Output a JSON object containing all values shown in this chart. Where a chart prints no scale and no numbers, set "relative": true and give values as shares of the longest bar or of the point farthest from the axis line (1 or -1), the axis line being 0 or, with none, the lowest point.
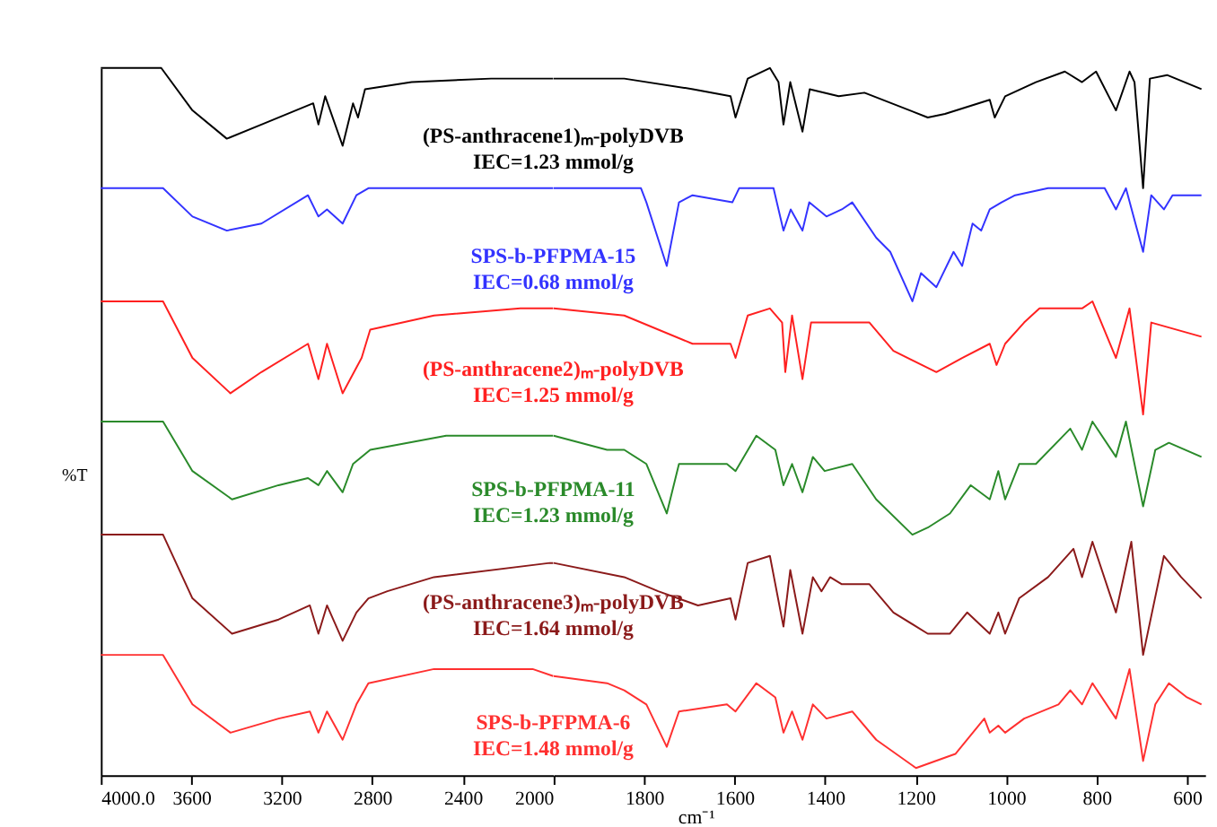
{
  "chart_data": [
    {
      "type": "line",
      "relative": true,
      "ylabel": "%T",
      "legend": false,
      "grid": false,
      "marker": "none",
      "line_style": "solid",
      "xlim": [
        4000,
        2000
      ],
      "xticks": [
        {
          "value": 4000,
          "label": "4000.0"
        },
        3600,
        3200,
        2800,
        2400,
        2000
      ],
      "annotations": [
        "IEC=1.23 mmol/g",
        "IEC=0.68 mmol/g",
        "IEC=1.25 mmol/g",
        "IEC=1.23 mmol/g",
        "IEC=1.64 mmol/g",
        "IEC=1.48 mmol/g"
      ],
      "series": [
        {
          "name": "(PS-anthracene1)ₘ-polyDVB",
          "color": "#000000",
          "x": [
            4000,
            3733,
            3595,
            3443,
            3290,
            3061,
            3038,
            3008,
            2931,
            2885,
            2863,
            2832,
            2626,
            2275,
            2000
          ],
          "values": [
            1.0,
            1.0,
            0.94,
            0.9,
            0.92,
            0.95,
            0.92,
            0.96,
            0.89,
            0.95,
            0.93,
            0.97,
            0.98,
            0.985,
            0.985
          ]
        },
        {
          "name": "SPS-b-PFPMA-15",
          "color": "#3333ff",
          "x": [
            4000,
            3725,
            3595,
            3443,
            3290,
            3084,
            3038,
            3000,
            2931,
            2870,
            2817,
            2400,
            2000
          ],
          "values": [
            0.83,
            0.83,
            0.79,
            0.77,
            0.78,
            0.82,
            0.79,
            0.8,
            0.78,
            0.82,
            0.83,
            0.83,
            0.83
          ]
        },
        {
          "name": "(PS-anthracene2)ₘ-polyDVB",
          "color": "#ff2020",
          "x": [
            4000,
            3725,
            3595,
            3427,
            3290,
            3084,
            3038,
            3000,
            2931,
            2847,
            2809,
            2527,
            2145,
            2000
          ],
          "values": [
            0.67,
            0.67,
            0.59,
            0.54,
            0.57,
            0.61,
            0.56,
            0.61,
            0.54,
            0.59,
            0.63,
            0.65,
            0.66,
            0.66
          ]
        },
        {
          "name": "SPS-b-PFPMA-11",
          "color": "#2a8a2a",
          "x": [
            4000,
            3725,
            3595,
            3420,
            3214,
            3084,
            3038,
            3000,
            2931,
            2885,
            2809,
            2473,
            2122,
            2000
          ],
          "values": [
            0.5,
            0.5,
            0.43,
            0.39,
            0.41,
            0.42,
            0.41,
            0.43,
            0.4,
            0.44,
            0.46,
            0.48,
            0.48,
            0.48
          ]
        },
        {
          "name": "(PS-anthracene3)ₘ-polyDVB",
          "color": "#8b1a1a",
          "x": [
            4000,
            3725,
            3595,
            3420,
            3214,
            3076,
            3038,
            3000,
            2931,
            2870,
            2817,
            2733,
            2527,
            2015,
            2000
          ],
          "values": [
            0.34,
            0.34,
            0.25,
            0.2,
            0.22,
            0.24,
            0.2,
            0.24,
            0.19,
            0.23,
            0.25,
            0.26,
            0.28,
            0.3,
            0.3
          ]
        },
        {
          "name": "SPS-b-PFPMA-6",
          "color": "#ff3030",
          "x": [
            4000,
            3725,
            3595,
            3427,
            3214,
            3076,
            3038,
            3000,
            2931,
            2870,
            2817,
            2527,
            2091,
            2000
          ],
          "values": [
            0.17,
            0.17,
            0.1,
            0.06,
            0.08,
            0.09,
            0.06,
            0.09,
            0.05,
            0.1,
            0.13,
            0.15,
            0.15,
            0.14
          ]
        }
      ]
    },
    {
      "type": "line",
      "relative": true,
      "xlabel": "cm⁻¹",
      "legend": false,
      "grid": false,
      "marker": "none",
      "line_style": "solid",
      "xlim": [
        2000,
        560
      ],
      "xticks": [
        1800,
        1600,
        1400,
        1200,
        1000,
        800,
        600
      ],
      "series": [
        {
          "color": "#000000",
          "x": [
            2000,
            1844,
            1692,
            1609,
            1598,
            1571,
            1522,
            1503,
            1492,
            1477,
            1450,
            1434,
            1370,
            1313,
            1173,
            1135,
            1036,
            1025,
            1002,
            934,
            870,
            832,
            801,
            757,
            727,
            716,
            697,
            682,
            644,
            568
          ],
          "values": [
            0.985,
            0.985,
            0.97,
            0.96,
            0.93,
            0.985,
            1.0,
            0.98,
            0.92,
            0.98,
            0.91,
            0.97,
            0.96,
            0.965,
            0.93,
            0.935,
            0.955,
            0.93,
            0.96,
            0.98,
            0.995,
            0.98,
            0.995,
            0.94,
            0.995,
            0.98,
            0.83,
            0.985,
            0.99,
            0.97
          ]
        },
        {
          "color": "#3333ff",
          "x": [
            2000,
            1844,
            1807,
            1795,
            1750,
            1723,
            1693,
            1605,
            1590,
            1514,
            1492,
            1476,
            1450,
            1435,
            1397,
            1363,
            1340,
            1287,
            1256,
            1207,
            1188,
            1154,
            1116,
            1097,
            1074,
            1055,
            1036,
            1010,
            980,
            907,
            832,
            782,
            757,
            735,
            697,
            679,
            651,
            632,
            568
          ],
          "values": [
            0.83,
            0.83,
            0.83,
            0.81,
            0.72,
            0.81,
            0.82,
            0.81,
            0.83,
            0.83,
            0.77,
            0.8,
            0.77,
            0.81,
            0.79,
            0.8,
            0.81,
            0.76,
            0.74,
            0.67,
            0.71,
            0.69,
            0.74,
            0.72,
            0.78,
            0.77,
            0.8,
            0.81,
            0.82,
            0.83,
            0.83,
            0.83,
            0.8,
            0.83,
            0.74,
            0.82,
            0.8,
            0.82,
            0.82
          ]
        },
        {
          "color": "#ff2020",
          "x": [
            2000,
            1844,
            1693,
            1609,
            1598,
            1571,
            1522,
            1495,
            1488,
            1473,
            1450,
            1431,
            1370,
            1302,
            1249,
            1154,
            1097,
            1036,
            1021,
            1002,
            960,
            926,
            870,
            832,
            809,
            757,
            727,
            697,
            679,
            568
          ],
          "values": [
            0.66,
            0.65,
            0.61,
            0.61,
            0.59,
            0.65,
            0.66,
            0.64,
            0.57,
            0.65,
            0.56,
            0.64,
            0.64,
            0.64,
            0.6,
            0.57,
            0.59,
            0.61,
            0.58,
            0.61,
            0.64,
            0.66,
            0.66,
            0.66,
            0.67,
            0.59,
            0.66,
            0.51,
            0.64,
            0.62
          ]
        },
        {
          "color": "#2a8a2a",
          "x": [
            2000,
            1882,
            1844,
            1795,
            1750,
            1723,
            1617,
            1598,
            1552,
            1510,
            1492,
            1473,
            1450,
            1427,
            1401,
            1340,
            1287,
            1207,
            1173,
            1124,
            1078,
            1036,
            1017,
            1002,
            971,
            934,
            858,
            832,
            809,
            757,
            735,
            697,
            670,
            640,
            568
          ],
          "values": [
            0.48,
            0.46,
            0.46,
            0.44,
            0.37,
            0.44,
            0.44,
            0.43,
            0.48,
            0.46,
            0.41,
            0.44,
            0.4,
            0.45,
            0.43,
            0.44,
            0.39,
            0.34,
            0.35,
            0.37,
            0.41,
            0.39,
            0.43,
            0.39,
            0.44,
            0.44,
            0.49,
            0.46,
            0.5,
            0.45,
            0.5,
            0.38,
            0.46,
            0.47,
            0.45
          ]
        },
        {
          "color": "#8b1a1a",
          "x": [
            2000,
            1844,
            1769,
            1681,
            1609,
            1598,
            1571,
            1522,
            1492,
            1477,
            1450,
            1427,
            1408,
            1389,
            1363,
            1302,
            1249,
            1173,
            1124,
            1086,
            1036,
            1017,
            1002,
            971,
            907,
            851,
            832,
            809,
            757,
            723,
            697,
            651,
            613,
            568
          ],
          "values": [
            0.3,
            0.28,
            0.26,
            0.24,
            0.25,
            0.22,
            0.3,
            0.31,
            0.21,
            0.29,
            0.2,
            0.28,
            0.26,
            0.28,
            0.27,
            0.27,
            0.23,
            0.2,
            0.2,
            0.23,
            0.2,
            0.23,
            0.2,
            0.25,
            0.28,
            0.32,
            0.28,
            0.33,
            0.23,
            0.33,
            0.17,
            0.31,
            0.28,
            0.25
          ]
        },
        {
          "color": "#ff3030",
          "x": [
            2000,
            1882,
            1844,
            1795,
            1750,
            1723,
            1617,
            1598,
            1552,
            1510,
            1492,
            1473,
            1450,
            1427,
            1397,
            1340,
            1287,
            1199,
            1112,
            1048,
            1036,
            1017,
            1002,
            960,
            884,
            858,
            832,
            809,
            757,
            727,
            697,
            670,
            640,
            600,
            568
          ],
          "values": [
            0.14,
            0.13,
            0.12,
            0.1,
            0.04,
            0.09,
            0.1,
            0.09,
            0.13,
            0.11,
            0.06,
            0.09,
            0.05,
            0.1,
            0.08,
            0.09,
            0.05,
            0.01,
            0.03,
            0.08,
            0.06,
            0.07,
            0.06,
            0.08,
            0.1,
            0.12,
            0.1,
            0.13,
            0.08,
            0.15,
            0.02,
            0.1,
            0.13,
            0.11,
            0.1
          ]
        }
      ]
    }
  ]
}
